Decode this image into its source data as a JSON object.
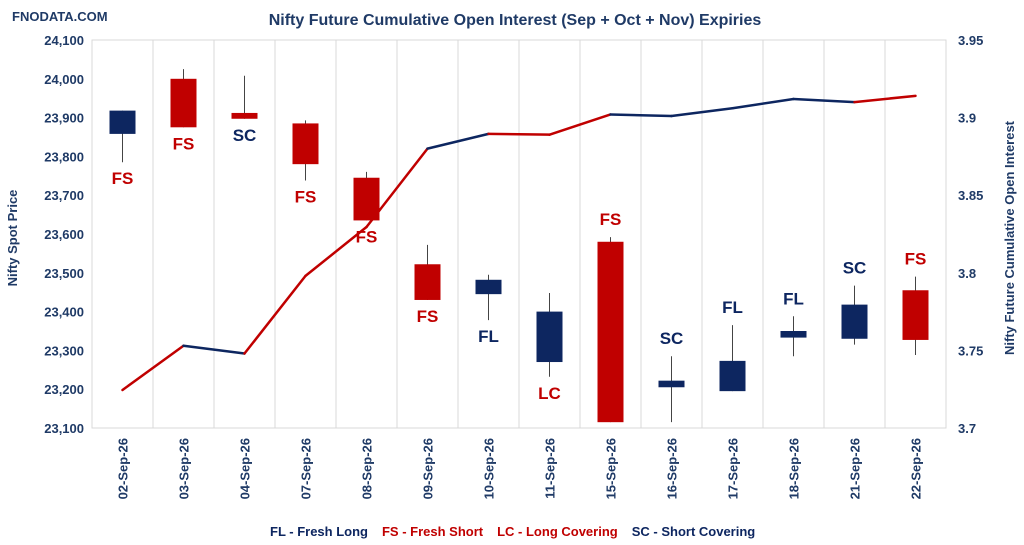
{
  "brand": "FNODATA.COM",
  "colors": {
    "red": "#c00000",
    "navy": "#0d2660",
    "grid": "#d9d9d9",
    "text": "#1f3a66"
  },
  "chart_data": {
    "type": "candlestick+line",
    "title": "Nifty Future Cumulative Open Interest (Sep + Oct + Nov) Expiries",
    "ylabel_left": "Nifty Spot Price",
    "ylabel_right": "Nifty Future Cumulative Open Interest",
    "ylim_left": [
      23100,
      24100
    ],
    "ylim_right": [
      3.7,
      3.95
    ],
    "yticks_left": [
      "23,100",
      "23,200",
      "23,300",
      "23,400",
      "23,500",
      "23,600",
      "23,700",
      "23,800",
      "23,900",
      "24,000",
      "24,100"
    ],
    "yticks_right": [
      "3.7",
      "3.75",
      "3.8",
      "3.85",
      "3.9",
      "3.95"
    ],
    "categories": [
      "02-Sep-26",
      "03-Sep-26",
      "04-Sep-26",
      "07-Sep-26",
      "08-Sep-26",
      "09-Sep-26",
      "10-Sep-26",
      "11-Sep-26",
      "15-Sep-26",
      "16-Sep-26",
      "17-Sep-26",
      "18-Sep-26",
      "21-Sep-26",
      "22-Sep-26"
    ],
    "candles": [
      {
        "open": 23858,
        "close": 23918,
        "high": 23918,
        "low": 23785,
        "color": "navy",
        "label": "FS",
        "label_color": "red"
      },
      {
        "open": 24000,
        "close": 23875,
        "high": 24025,
        "low": 23875,
        "color": "red",
        "label": "FS",
        "label_color": "red"
      },
      {
        "open": 23912,
        "close": 23897,
        "high": 24008,
        "low": 23897,
        "color": "red",
        "label": "SC",
        "label_color": "navy"
      },
      {
        "open": 23885,
        "close": 23780,
        "high": 23893,
        "low": 23738,
        "color": "red",
        "label": "FS",
        "label_color": "red"
      },
      {
        "open": 23745,
        "close": 23635,
        "high": 23760,
        "low": 23635,
        "color": "red",
        "label": "FS",
        "label_color": "red"
      },
      {
        "open": 23522,
        "close": 23430,
        "high": 23572,
        "low": 23430,
        "color": "red",
        "label": "FS",
        "label_color": "red"
      },
      {
        "open": 23445,
        "close": 23482,
        "high": 23495,
        "low": 23378,
        "color": "navy",
        "label": "FL",
        "label_color": "navy"
      },
      {
        "open": 23270,
        "close": 23400,
        "high": 23448,
        "low": 23232,
        "color": "navy",
        "label": "LC",
        "label_color": "red"
      },
      {
        "open": 23580,
        "close": 23115,
        "high": 23592,
        "low": 23115,
        "color": "red",
        "label": "FS",
        "label_color": "red"
      },
      {
        "open": 23205,
        "close": 23222,
        "high": 23285,
        "low": 23115,
        "color": "navy",
        "label": "SC",
        "label_color": "navy"
      },
      {
        "open": 23195,
        "close": 23273,
        "high": 23365,
        "low": 23195,
        "color": "navy",
        "label": "FL",
        "label_color": "navy"
      },
      {
        "open": 23333,
        "close": 23350,
        "high": 23388,
        "low": 23285,
        "color": "navy",
        "label": "FL",
        "label_color": "navy"
      },
      {
        "open": 23330,
        "close": 23418,
        "high": 23467,
        "low": 23315,
        "color": "navy",
        "label": "SC",
        "label_color": "navy"
      },
      {
        "open": 23455,
        "close": 23327,
        "high": 23490,
        "low": 23288,
        "color": "red",
        "label": "FS",
        "label_color": "red"
      }
    ],
    "oi_values": [
      3.7245,
      3.753,
      3.748,
      3.798,
      3.8295,
      3.88,
      3.8895,
      3.889,
      3.902,
      3.901,
      3.906,
      3.912,
      3.91,
      3.914
    ],
    "oi_segment_colors": [
      "red",
      "navy",
      "red",
      "red",
      "red",
      "navy",
      "red",
      "red",
      "navy",
      "navy",
      "navy",
      "navy",
      "red"
    ],
    "legend": [
      {
        "text": "FL - Fresh Long",
        "color": "navy"
      },
      {
        "text": "FS - Fresh Short",
        "color": "red"
      },
      {
        "text": "LC - Long Covering",
        "color": "red"
      },
      {
        "text": "SC - Short Covering",
        "color": "navy"
      }
    ],
    "grid": true,
    "legend_placement": "bottom"
  }
}
